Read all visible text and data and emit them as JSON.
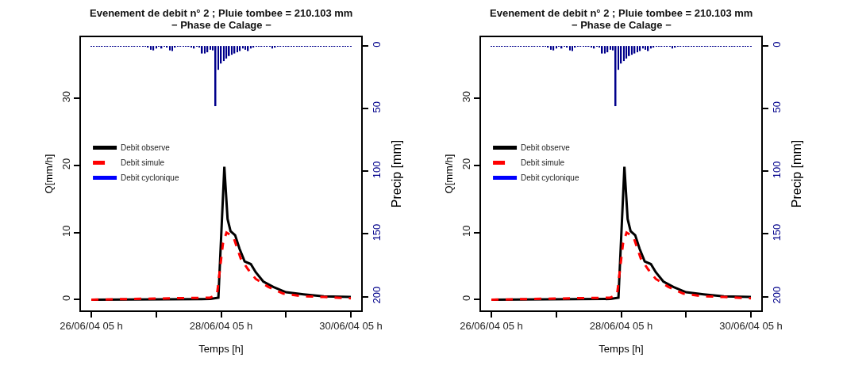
{
  "chart_data": [
    {
      "type": "line",
      "title": "Evenement de debit n° 2 ; Pluie tombee = 210.103 mm",
      "subtitle": "− Phase de Calage −",
      "xlabel": "Temps [h]",
      "ylabel": "Q[mm/h]",
      "y2label": "Precip [mm]",
      "xlim": [
        "--06-26T01:10",
        "--06-30T08:50"
      ],
      "xticks": [
        {
          "value": "--06-26T05:00",
          "label": "26/06/04 05 h"
        },
        {
          "value": "--06-27T05:00",
          "label": null
        },
        {
          "value": "--06-28T05:00",
          "label": "28/06/04 05 h"
        },
        {
          "value": "--06-29T05:00",
          "label": null
        },
        {
          "value": "--06-30T05:00",
          "label": "30/06/04 05 h"
        }
      ],
      "ylim": [
        -1.6,
        39.1
      ],
      "yticks": [
        0,
        10,
        20,
        30
      ],
      "y2lim": [
        211,
        -7
      ],
      "y2ticks": [
        0,
        50,
        100,
        150,
        200
      ],
      "legend": "left",
      "series": [
        {
          "type": "bar",
          "axis": "y2",
          "color": "#00008b",
          "x": [
            "--06-26T05:00",
            "--06-26T06:00",
            "--06-26T07:00",
            "--06-26T08:00",
            "--06-26T09:00",
            "--06-26T10:00",
            "--06-26T11:00",
            "--06-26T12:00",
            "--06-26T13:00",
            "--06-26T14:00",
            "--06-26T15:00",
            "--06-26T16:00",
            "--06-26T17:00",
            "--06-26T18:00",
            "--06-26T19:00",
            "--06-26T20:00",
            "--06-26T21:00",
            "--06-26T22:00",
            "--06-26T23:00",
            "--06-27T00:00",
            "--06-27T01:00",
            "--06-27T02:00",
            "--06-27T03:00",
            "--06-27T04:00",
            "--06-27T05:00",
            "--06-27T06:00",
            "--06-27T07:00",
            "--06-27T08:00",
            "--06-27T09:00",
            "--06-27T10:00",
            "--06-27T11:00",
            "--06-27T12:00",
            "--06-27T13:00",
            "--06-27T14:00",
            "--06-27T15:00",
            "--06-27T16:00",
            "--06-27T17:00",
            "--06-27T18:00",
            "--06-27T19:00",
            "--06-27T20:00",
            "--06-27T21:00",
            "--06-27T22:00",
            "--06-27T23:00",
            "--06-28T00:00",
            "--06-28T01:00",
            "--06-28T02:00",
            "--06-28T03:00",
            "--06-28T04:00",
            "--06-28T05:00",
            "--06-28T06:00",
            "--06-28T07:00",
            "--06-28T08:00",
            "--06-28T09:00",
            "--06-28T10:00",
            "--06-28T11:00",
            "--06-28T12:00",
            "--06-28T13:00",
            "--06-28T14:00",
            "--06-28T15:00",
            "--06-28T16:00",
            "--06-28T17:00",
            "--06-28T18:00",
            "--06-28T19:00",
            "--06-28T20:00",
            "--06-28T21:00",
            "--06-28T22:00",
            "--06-28T23:00",
            "--06-29T00:00",
            "--06-29T01:00",
            "--06-29T02:00",
            "--06-29T03:00",
            "--06-29T04:00",
            "--06-29T05:00",
            "--06-29T06:00",
            "--06-29T07:00",
            "--06-29T08:00",
            "--06-29T09:00",
            "--06-29T10:00",
            "--06-29T11:00",
            "--06-29T12:00",
            "--06-29T13:00",
            "--06-29T14:00",
            "--06-29T15:00",
            "--06-29T16:00",
            "--06-29T17:00",
            "--06-29T18:00",
            "--06-29T19:00",
            "--06-29T20:00",
            "--06-29T21:00",
            "--06-29T22:00",
            "--06-29T23:00",
            "--06-30T00:00",
            "--06-30T01:00",
            "--06-30T02:00",
            "--06-30T03:00",
            "--06-30T04:00",
            "--06-30T05:00"
          ],
          "values": [
            0.5,
            0.5,
            0.5,
            0.5,
            0.5,
            0.5,
            0.5,
            0.5,
            0.5,
            0.5,
            0.5,
            0.5,
            0.5,
            0.5,
            0.5,
            0.5,
            0.5,
            0.5,
            0.5,
            0.5,
            0.5,
            1,
            3,
            3.5,
            2,
            0.5,
            2,
            0.5,
            1,
            3.5,
            4,
            1,
            0.5,
            0.5,
            0.5,
            0.5,
            0.5,
            1,
            2,
            0.5,
            1,
            6,
            6,
            5,
            3,
            3.5,
            48,
            19,
            14,
            12,
            10,
            8,
            7,
            6,
            5,
            4,
            2,
            3,
            4,
            2,
            1,
            0.5,
            0.5,
            0.5,
            0.5,
            0.5,
            0.5,
            2,
            1,
            0.5,
            0.5,
            0.5,
            0.5,
            0.5,
            0.5,
            0.5,
            0.5,
            0.5,
            0.5,
            0.5,
            0.5,
            0.5,
            0.5,
            0.5,
            0.5,
            0.5,
            0.5,
            0.5,
            0.5,
            0.5,
            0.5,
            0.5,
            0.5,
            0.5,
            0.5,
            0.5,
            0.5
          ]
        },
        {
          "name": "Debit observe",
          "color": "#000000",
          "line_style": "solid",
          "x": [
            "--06-26T05:00",
            "--06-28T01:00",
            "--06-28T04:00",
            "--06-28T06:12",
            "--06-28T07:24",
            "--06-28T08:30",
            "--06-28T10:12",
            "--06-28T11:48",
            "--06-28T13:42",
            "--06-28T16:00",
            "--06-28T17:48",
            "--06-28T20:36",
            "--06-29T00:18",
            "--06-29T05:00",
            "--06-29T11:30",
            "--06-29T19:00",
            "--06-30T05:00"
          ],
          "values": [
            0,
            0.1,
            0.3,
            19.8,
            12,
            10.2,
            9.6,
            7.6,
            5.7,
            5.3,
            4.1,
            2.7,
            1.9,
            1.1,
            0.8,
            0.5,
            0.4
          ]
        },
        {
          "name": "Debit simule",
          "color": "#ff0000",
          "line_style": "dashed",
          "x": [
            "--06-26T05:00",
            "--06-28T01:00",
            "--06-28T03:30",
            "--06-28T05:42",
            "--06-28T07:00",
            "--06-28T09:30",
            "--06-28T12:18",
            "--06-28T15:00",
            "--06-28T17:48",
            "--06-28T22:30",
            "--06-29T04:00",
            "--06-29T11:30",
            "--06-29T19:00",
            "--06-30T05:00"
          ],
          "values": [
            0,
            0.3,
            0.8,
            8.4,
            10,
            9.4,
            6.1,
            4.5,
            3.1,
            1.9,
            0.9,
            0.5,
            0.4,
            0.2
          ]
        },
        {
          "name": "Debit cyclonique",
          "color": "#0000ff",
          "line_style": "solid"
        }
      ]
    },
    {
      "type": "line",
      "title": "Evenement de debit n° 2 ; Pluie tombee = 210.103 mm",
      "subtitle": "− Phase de Calage −",
      "xlabel": "Temps [h]",
      "ylabel": "Q[mm/h]",
      "y2label": "Precip [mm]",
      "xlim": [
        "--06-26T01:10",
        "--06-30T08:50"
      ],
      "xticks": [
        {
          "value": "--06-26T05:00",
          "label": "26/06/04 05 h"
        },
        {
          "value": "--06-27T05:00",
          "label": null
        },
        {
          "value": "--06-28T05:00",
          "label": "28/06/04 05 h"
        },
        {
          "value": "--06-29T05:00",
          "label": null
        },
        {
          "value": "--06-30T05:00",
          "label": "30/06/04 05 h"
        }
      ],
      "ylim": [
        -1.6,
        39.1
      ],
      "yticks": [
        0,
        10,
        20,
        30
      ],
      "y2lim": [
        211,
        -7
      ],
      "y2ticks": [
        0,
        50,
        100,
        150,
        200
      ],
      "legend": "left",
      "series": [
        {
          "type": "bar",
          "axis": "y2",
          "color": "#00008b",
          "x": [
            "--06-26T05:00",
            "--06-26T06:00",
            "--06-26T07:00",
            "--06-26T08:00",
            "--06-26T09:00",
            "--06-26T10:00",
            "--06-26T11:00",
            "--06-26T12:00",
            "--06-26T13:00",
            "--06-26T14:00",
            "--06-26T15:00",
            "--06-26T16:00",
            "--06-26T17:00",
            "--06-26T18:00",
            "--06-26T19:00",
            "--06-26T20:00",
            "--06-26T21:00",
            "--06-26T22:00",
            "--06-26T23:00",
            "--06-27T00:00",
            "--06-27T01:00",
            "--06-27T02:00",
            "--06-27T03:00",
            "--06-27T04:00",
            "--06-27T05:00",
            "--06-27T06:00",
            "--06-27T07:00",
            "--06-27T08:00",
            "--06-27T09:00",
            "--06-27T10:00",
            "--06-27T11:00",
            "--06-27T12:00",
            "--06-27T13:00",
            "--06-27T14:00",
            "--06-27T15:00",
            "--06-27T16:00",
            "--06-27T17:00",
            "--06-27T18:00",
            "--06-27T19:00",
            "--06-27T20:00",
            "--06-27T21:00",
            "--06-27T22:00",
            "--06-27T23:00",
            "--06-28T00:00",
            "--06-28T01:00",
            "--06-28T02:00",
            "--06-28T03:00",
            "--06-28T04:00",
            "--06-28T05:00",
            "--06-28T06:00",
            "--06-28T07:00",
            "--06-28T08:00",
            "--06-28T09:00",
            "--06-28T10:00",
            "--06-28T11:00",
            "--06-28T12:00",
            "--06-28T13:00",
            "--06-28T14:00",
            "--06-28T15:00",
            "--06-28T16:00",
            "--06-28T17:00",
            "--06-28T18:00",
            "--06-28T19:00",
            "--06-28T20:00",
            "--06-28T21:00",
            "--06-28T22:00",
            "--06-28T23:00",
            "--06-29T00:00",
            "--06-29T01:00",
            "--06-29T02:00",
            "--06-29T03:00",
            "--06-29T04:00",
            "--06-29T05:00",
            "--06-29T06:00",
            "--06-29T07:00",
            "--06-29T08:00",
            "--06-29T09:00",
            "--06-29T10:00",
            "--06-29T11:00",
            "--06-29T12:00",
            "--06-29T13:00",
            "--06-29T14:00",
            "--06-29T15:00",
            "--06-29T16:00",
            "--06-29T17:00",
            "--06-29T18:00",
            "--06-29T19:00",
            "--06-29T20:00",
            "--06-29T21:00",
            "--06-29T22:00",
            "--06-29T23:00",
            "--06-30T00:00",
            "--06-30T01:00",
            "--06-30T02:00",
            "--06-30T03:00",
            "--06-30T04:00",
            "--06-30T05:00"
          ],
          "values": [
            0.5,
            0.5,
            0.5,
            0.5,
            0.5,
            0.5,
            0.5,
            0.5,
            0.5,
            0.5,
            0.5,
            0.5,
            0.5,
            0.5,
            0.5,
            0.5,
            0.5,
            0.5,
            0.5,
            0.5,
            0.5,
            1,
            3,
            3.5,
            2,
            0.5,
            2,
            0.5,
            1,
            3.5,
            4,
            1,
            0.5,
            0.5,
            0.5,
            0.5,
            0.5,
            1,
            2,
            0.5,
            1,
            6,
            6,
            5,
            3,
            3.5,
            48,
            19,
            14,
            12,
            10,
            8,
            7,
            6,
            5,
            4,
            2,
            3,
            4,
            2,
            1,
            0.5,
            0.5,
            0.5,
            0.5,
            0.5,
            0.5,
            2,
            1,
            0.5,
            0.5,
            0.5,
            0.5,
            0.5,
            0.5,
            0.5,
            0.5,
            0.5,
            0.5,
            0.5,
            0.5,
            0.5,
            0.5,
            0.5,
            0.5,
            0.5,
            0.5,
            0.5,
            0.5,
            0.5,
            0.5,
            0.5,
            0.5,
            0.5,
            0.5,
            0.5,
            0.5
          ]
        },
        {
          "name": "Debit observe",
          "color": "#000000",
          "line_style": "solid",
          "x": [
            "--06-26T05:00",
            "--06-28T01:00",
            "--06-28T04:00",
            "--06-28T06:12",
            "--06-28T07:24",
            "--06-28T08:30",
            "--06-28T10:12",
            "--06-28T11:48",
            "--06-28T13:42",
            "--06-28T16:00",
            "--06-28T17:48",
            "--06-28T20:36",
            "--06-29T00:18",
            "--06-29T05:00",
            "--06-29T11:30",
            "--06-29T19:00",
            "--06-30T05:00"
          ],
          "values": [
            0,
            0.1,
            0.3,
            19.8,
            12,
            10.2,
            9.6,
            7.6,
            5.7,
            5.3,
            4.1,
            2.7,
            1.9,
            1.1,
            0.8,
            0.5,
            0.4
          ]
        },
        {
          "name": "Debit simule",
          "color": "#ff0000",
          "line_style": "dashed",
          "x": [
            "--06-26T05:00",
            "--06-28T01:00",
            "--06-28T03:30",
            "--06-28T05:42",
            "--06-28T07:00",
            "--06-28T09:30",
            "--06-28T12:18",
            "--06-28T15:00",
            "--06-28T17:48",
            "--06-28T22:30",
            "--06-29T04:00",
            "--06-29T11:30",
            "--06-29T19:00",
            "--06-30T05:00"
          ],
          "values": [
            0,
            0.3,
            0.8,
            8.4,
            10,
            9.4,
            6.1,
            4.5,
            3.1,
            1.9,
            0.9,
            0.5,
            0.4,
            0.2
          ]
        },
        {
          "name": "Debit cyclonique",
          "color": "#0000ff",
          "line_style": "solid"
        }
      ]
    }
  ]
}
